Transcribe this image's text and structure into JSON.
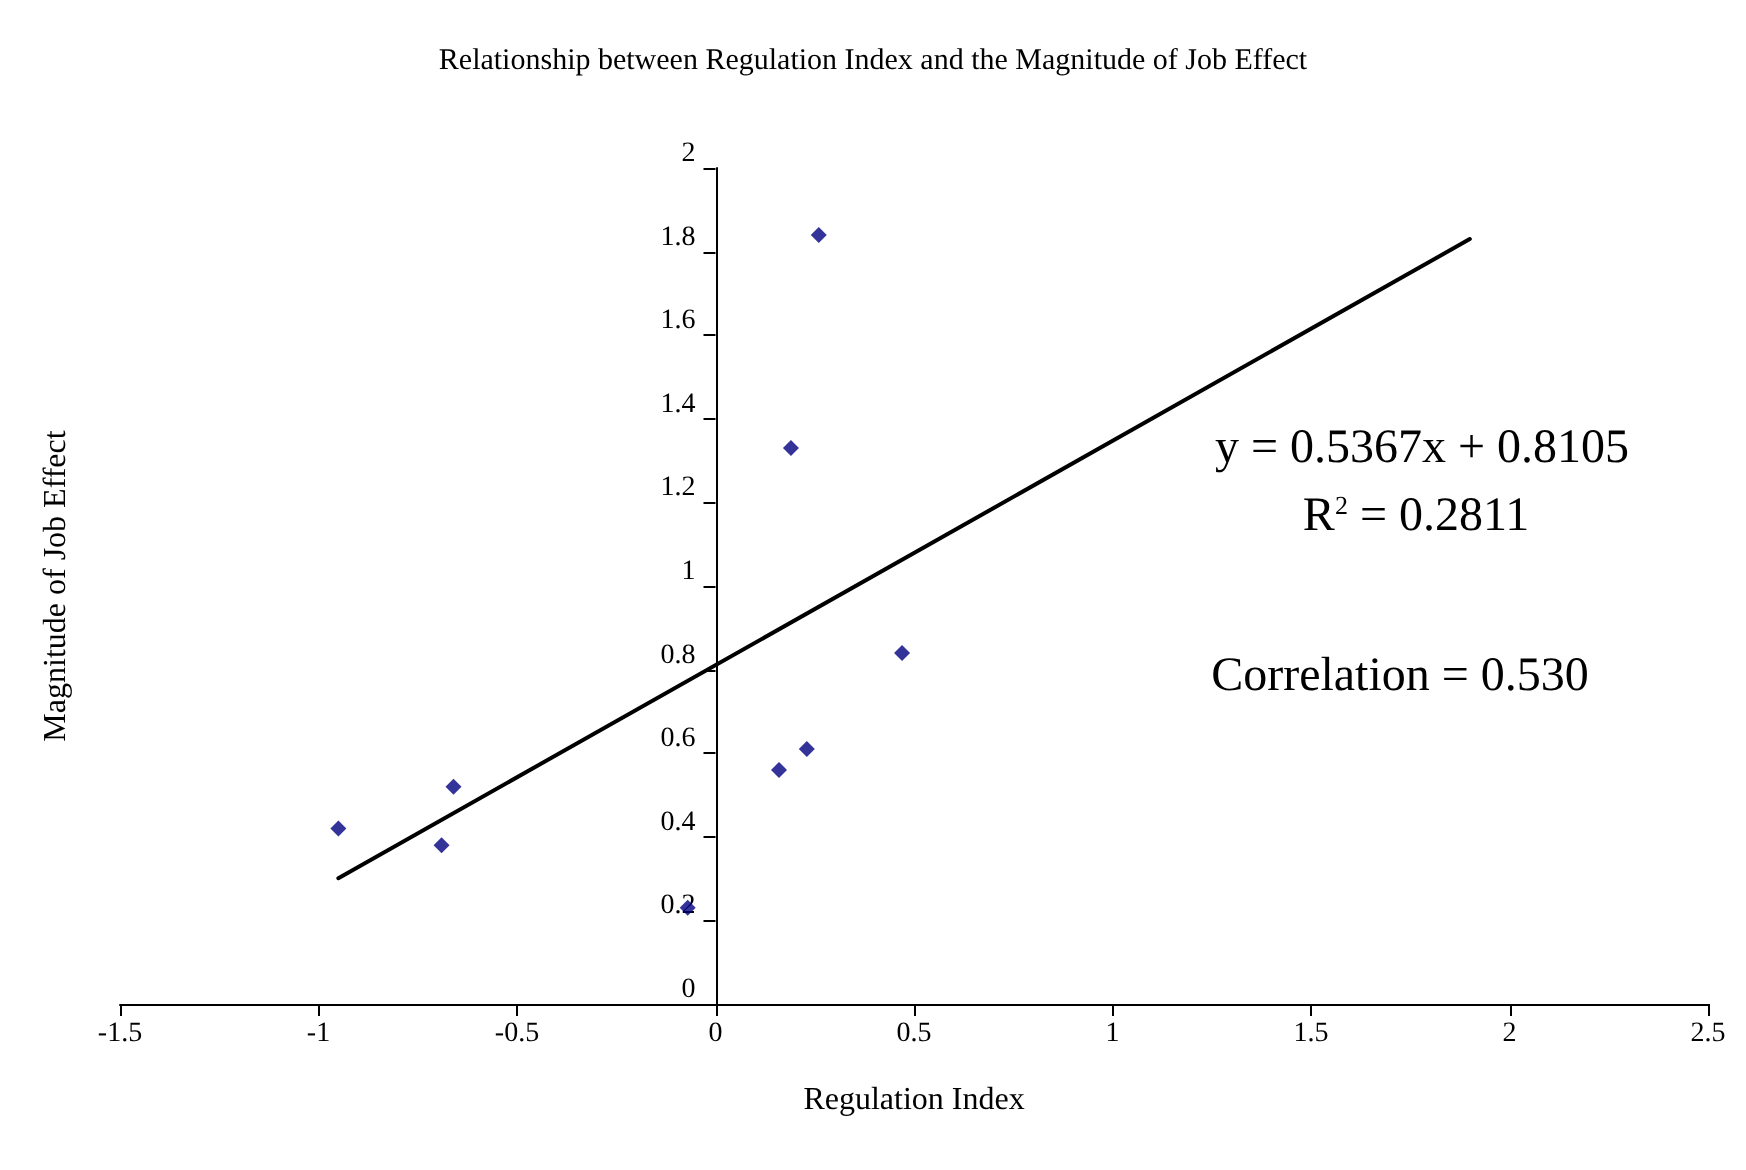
{
  "chart_data": {
    "type": "scatter",
    "title": "Relationship between Regulation Index and the Magnitude of Job Effect",
    "xlabel": "Regulation Index",
    "ylabel": "Magnitude of Job Effect",
    "series": [
      {
        "color": "#000080",
        "marker": "diamond",
        "x": [
          -0.95,
          -0.69,
          -0.66,
          -0.07,
          0.16,
          0.23,
          0.19,
          0.26,
          0.47
        ],
        "values": [
          0.42,
          0.38,
          0.52,
          0.23,
          0.56,
          0.61,
          1.33,
          1.84,
          0.84
        ]
      },
      {
        "type": "line",
        "color": "#000000",
        "marker": "none",
        "line_style": "solid",
        "x": [
          -0.95,
          1.9
        ],
        "values": [
          0.301,
          1.83
        ]
      }
    ],
    "annotations": [
      "y = 0.5367x + 0.8105",
      "R$^{2}$ = 0.2811",
      "Correlation = 0.530"
    ],
    "xlim": [
      -1.5,
      2.5
    ],
    "xticks": [
      -1.5,
      -1,
      -0.5,
      0,
      0.5,
      1,
      1.5,
      2,
      2.5
    ],
    "ylim": [
      0,
      2
    ],
    "yticks": [
      0,
      0.2,
      0.4,
      0.6,
      0.8,
      1,
      1.2,
      1.4,
      1.6,
      1.8,
      2
    ],
    "grid": false
  }
}
